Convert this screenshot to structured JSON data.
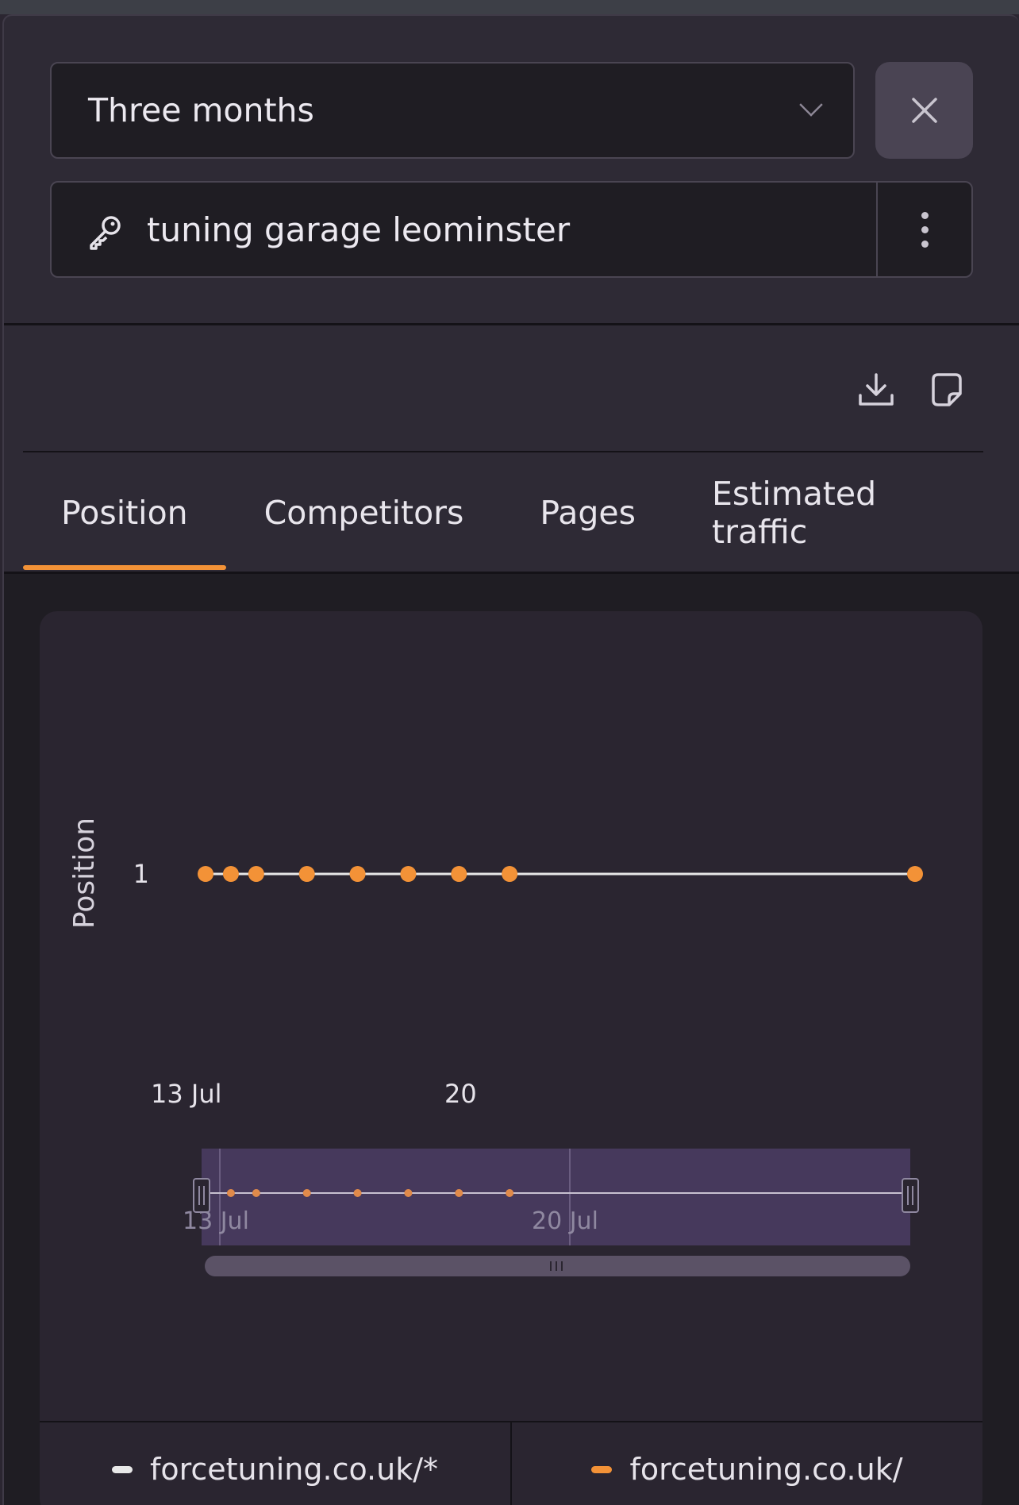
{
  "header": {
    "period_value": "Three months",
    "keyword": "tuning garage leominster"
  },
  "icons": {
    "period_chevron": "chevron-down-icon",
    "close": "close-icon",
    "key": "key-icon",
    "more": "more-vertical-icon",
    "download": "download-icon",
    "note": "note-icon"
  },
  "tabs": [
    {
      "label": "Position",
      "active": true
    },
    {
      "label": "Competitors",
      "active": false
    },
    {
      "label": "Pages",
      "active": false
    },
    {
      "label": "Estimated traffic",
      "active": false
    }
  ],
  "chart_data": {
    "type": "line",
    "ylabel": "Position",
    "y_ticks": [
      "1"
    ],
    "x_ticks": [
      "13 Jul",
      "20"
    ],
    "navigator_ticks": [
      "13 Jul",
      "20 Jul"
    ],
    "x_start": "2024-07-13",
    "x_end": "2024-07-27",
    "series": [
      {
        "name": "forcetuning.co.uk/",
        "color": "#f39237",
        "points": [
          {
            "x": "2024-07-13",
            "y": 1
          },
          {
            "x": "2024-07-13T12:00",
            "y": 1
          },
          {
            "x": "2024-07-14",
            "y": 1
          },
          {
            "x": "2024-07-15",
            "y": 1
          },
          {
            "x": "2024-07-16",
            "y": 1
          },
          {
            "x": "2024-07-17",
            "y": 1
          },
          {
            "x": "2024-07-18",
            "y": 1
          },
          {
            "x": "2024-07-19",
            "y": 1
          },
          {
            "x": "2024-07-27",
            "y": 1
          }
        ]
      }
    ],
    "legend": [
      {
        "label": "forcetuning.co.uk/*",
        "color": "#e8e8e8"
      },
      {
        "label": "forcetuning.co.uk/",
        "color": "#f39237"
      }
    ],
    "legend_position": "bottom"
  }
}
